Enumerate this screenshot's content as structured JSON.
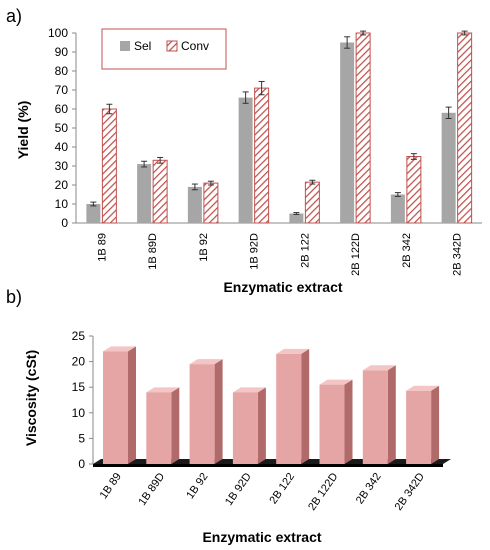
{
  "chart_data": [
    {
      "panel_label": "a)",
      "type": "bar",
      "categories": [
        "1B 89",
        "1B 89D",
        "1B 92",
        "1B 92D",
        "2B 122",
        "2B 122D",
        "2B 342",
        "2B 342D"
      ],
      "series": [
        {
          "name": "Sel",
          "values": [
            10,
            31,
            19,
            66,
            5,
            95,
            15,
            58
          ],
          "errors": [
            1,
            1.5,
            1.5,
            3,
            0.5,
            3,
            1,
            3
          ],
          "color": "#a6a6a6",
          "pattern": "solid"
        },
        {
          "name": "Conv",
          "values": [
            60,
            33,
            21,
            71,
            21.5,
            100,
            35,
            100
          ],
          "errors": [
            2.5,
            1.5,
            1,
            3.5,
            1,
            1,
            1.5,
            1
          ],
          "color": "#c0504d",
          "pattern": "diagonal-hatch"
        }
      ],
      "ylabel": "Yield (%)",
      "xlabel": "Enzymatic extract",
      "ylim": [
        0,
        100
      ],
      "yticks": [
        0,
        10,
        20,
        30,
        40,
        50,
        60,
        70,
        80,
        90,
        100
      ],
      "legend": "top-left, boxed",
      "grid": false
    },
    {
      "panel_label": "b)",
      "type": "bar",
      "style": "3d",
      "categories": [
        "1B 89",
        "1B 89D",
        "1B 92",
        "1B 92D",
        "2B 122",
        "2B 122D",
        "2B 342",
        "2B 342D"
      ],
      "values": [
        22,
        14,
        19.5,
        14,
        21.5,
        15.5,
        18.3,
        14.3
      ],
      "bar_color": "#e6a5a5",
      "floor_color": "#1a1a1a",
      "ylabel": "Viscosity (cSt)",
      "xlabel": "Enzymatic extract",
      "ylim": [
        0,
        25
      ],
      "yticks": [
        0,
        5,
        10,
        15,
        20,
        25
      ],
      "grid": false
    }
  ]
}
